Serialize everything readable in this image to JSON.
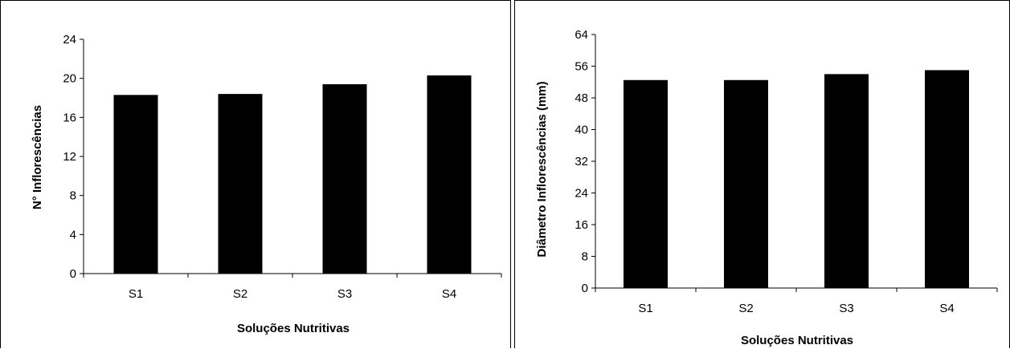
{
  "chart_data": [
    {
      "type": "bar",
      "categories": [
        "S1",
        "S2",
        "S3",
        "S4"
      ],
      "values": [
        18.3,
        18.4,
        19.4,
        20.3
      ],
      "title": "",
      "xlabel": "Soluções Nutritivas",
      "ylabel": "N° Inflorescências",
      "ylim": [
        0,
        24
      ],
      "yticks": [
        0,
        4,
        8,
        12,
        16,
        20,
        24
      ],
      "grid": false,
      "bar_color": "#000000"
    },
    {
      "type": "bar",
      "categories": [
        "S1",
        "S2",
        "S3",
        "S4"
      ],
      "values": [
        52.5,
        52.5,
        54,
        55
      ],
      "title": "",
      "xlabel": "Soluções Nutritivas",
      "ylabel": "Diâmetro Inflorescências (mm)",
      "ylim": [
        0,
        64
      ],
      "yticks": [
        0,
        8,
        16,
        24,
        32,
        40,
        48,
        56,
        64
      ],
      "grid": false,
      "bar_color": "#000000"
    }
  ]
}
